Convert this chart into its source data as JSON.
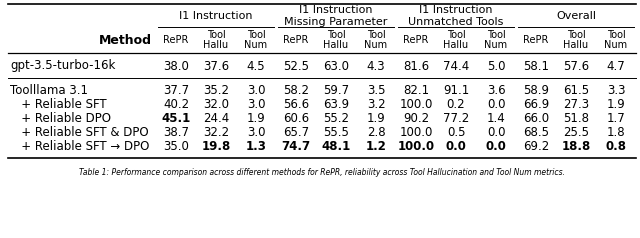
{
  "caption": "Table 1: Performance comparison across different methods for RePR, reliability across Tool Hallucination and Tool Num metrics.",
  "group_labels": [
    "I1 Instruction",
    "I1 Instruction\nMissing Parameter",
    "I1 Instruction\nUnmatched Tools",
    "Overall"
  ],
  "sub_headers": [
    "RePR",
    "Tool\nHallu",
    "Tool\nNum"
  ],
  "rows": [
    {
      "method": "gpt-3.5-turbo-16k",
      "values": [
        [
          "38.0",
          "37.6",
          "4.5"
        ],
        [
          "52.5",
          "63.0",
          "4.3"
        ],
        [
          "81.6",
          "74.4",
          "5.0"
        ],
        [
          "58.1",
          "57.6",
          "4.7"
        ]
      ],
      "bold": [
        [
          false,
          false,
          false
        ],
        [
          false,
          false,
          false
        ],
        [
          false,
          false,
          false
        ],
        [
          false,
          false,
          false
        ]
      ],
      "group_sep": true
    },
    {
      "method": "Toolllama 3.1",
      "values": [
        [
          "37.7",
          "35.2",
          "3.0"
        ],
        [
          "58.2",
          "59.7",
          "3.5"
        ],
        [
          "82.1",
          "91.1",
          "3.6"
        ],
        [
          "58.9",
          "61.5",
          "3.3"
        ]
      ],
      "bold": [
        [
          false,
          false,
          false
        ],
        [
          false,
          false,
          false
        ],
        [
          false,
          false,
          false
        ],
        [
          false,
          false,
          false
        ]
      ],
      "group_sep": false
    },
    {
      "method": "   + Reliable SFT",
      "values": [
        [
          "40.2",
          "32.0",
          "3.0"
        ],
        [
          "56.6",
          "63.9",
          "3.2"
        ],
        [
          "100.0",
          "0.2",
          "0.0"
        ],
        [
          "66.9",
          "27.3",
          "1.9"
        ]
      ],
      "bold": [
        [
          false,
          false,
          false
        ],
        [
          false,
          false,
          false
        ],
        [
          false,
          false,
          false
        ],
        [
          false,
          false,
          false
        ]
      ],
      "group_sep": false
    },
    {
      "method": "   + Reliable DPO",
      "values": [
        [
          "45.1",
          "24.4",
          "1.9"
        ],
        [
          "60.6",
          "55.2",
          "1.9"
        ],
        [
          "90.2",
          "77.2",
          "1.4"
        ],
        [
          "66.0",
          "51.8",
          "1.7"
        ]
      ],
      "bold": [
        [
          true,
          false,
          false
        ],
        [
          false,
          false,
          false
        ],
        [
          false,
          false,
          false
        ],
        [
          false,
          false,
          false
        ]
      ],
      "group_sep": false
    },
    {
      "method": "   + Reliable SFT & DPO",
      "values": [
        [
          "38.7",
          "32.2",
          "3.0"
        ],
        [
          "65.7",
          "55.5",
          "2.8"
        ],
        [
          "100.0",
          "0.5",
          "0.0"
        ],
        [
          "68.5",
          "25.5",
          "1.8"
        ]
      ],
      "bold": [
        [
          false,
          false,
          false
        ],
        [
          false,
          false,
          false
        ],
        [
          false,
          false,
          false
        ],
        [
          false,
          false,
          false
        ]
      ],
      "group_sep": false
    },
    {
      "method": "   + Reliable SFT → DPO",
      "values": [
        [
          "35.0",
          "19.8",
          "1.3"
        ],
        [
          "74.7",
          "48.1",
          "1.2"
        ],
        [
          "100.0",
          "0.0",
          "0.0"
        ],
        [
          "69.2",
          "18.8",
          "0.8"
        ]
      ],
      "bold": [
        [
          false,
          true,
          true
        ],
        [
          true,
          true,
          true
        ],
        [
          true,
          true,
          true
        ],
        [
          false,
          true,
          true
        ]
      ],
      "group_sep": false
    }
  ],
  "background_color": "#ffffff"
}
